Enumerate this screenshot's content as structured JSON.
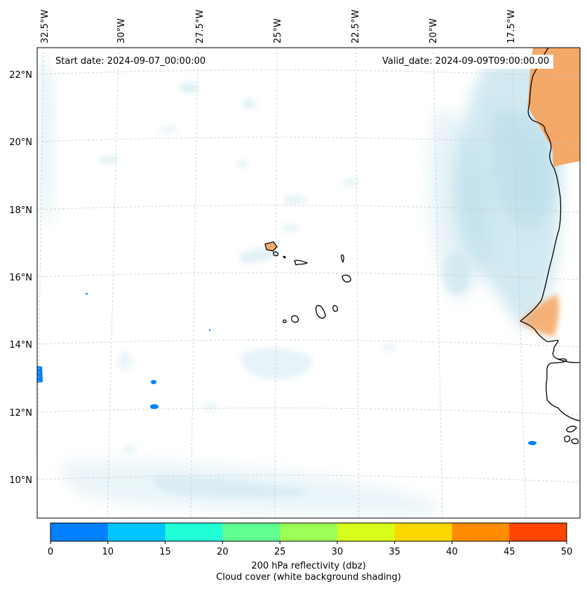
{
  "header": {
    "start_date_text": "Start date: 2024-09-07_00:00:00",
    "valid_date_text": "Valid_date: 2024-09-09T09:00:00.00"
  },
  "map": {
    "projection": "lambert-conformal",
    "lon_range": [
      -32.8,
      -15.2
    ],
    "lat_range": [
      8.9,
      22.8
    ],
    "longitude_labels": [
      "32.5°W",
      "30°W",
      "27.5°W",
      "25°W",
      "22.5°W",
      "20°W",
      "17.5°W"
    ],
    "latitude_labels": [
      "22°N",
      "20°N",
      "18°N",
      "16°N",
      "14°N",
      "12°N",
      "10°N"
    ],
    "gridlines": "dashed light gray",
    "features": [
      "Cabo Verde islands",
      "West African coastline (Mauritania, Senegal, Gambia, Guinea-Bissau)"
    ]
  },
  "colorbar": {
    "ticks": [
      "0",
      "10",
      "15",
      "20",
      "25",
      "30",
      "35",
      "40",
      "45",
      "50"
    ],
    "bin_colors": [
      "#0080ff",
      "#00c4ff",
      "#20ffd6",
      "#60ff90",
      "#9cff55",
      "#d8ff1c",
      "#ffd700",
      "#ff8c00",
      "#ff4500"
    ],
    "label": "200 hPa reflectivity (dbz)",
    "sublabel": "Cloud cover (white background shading)"
  },
  "colors": {
    "cloud": "#add8e6",
    "reflectivity_low": "#0080ff",
    "reflectivity_high": "#f4a460",
    "coastline": "#000000"
  }
}
